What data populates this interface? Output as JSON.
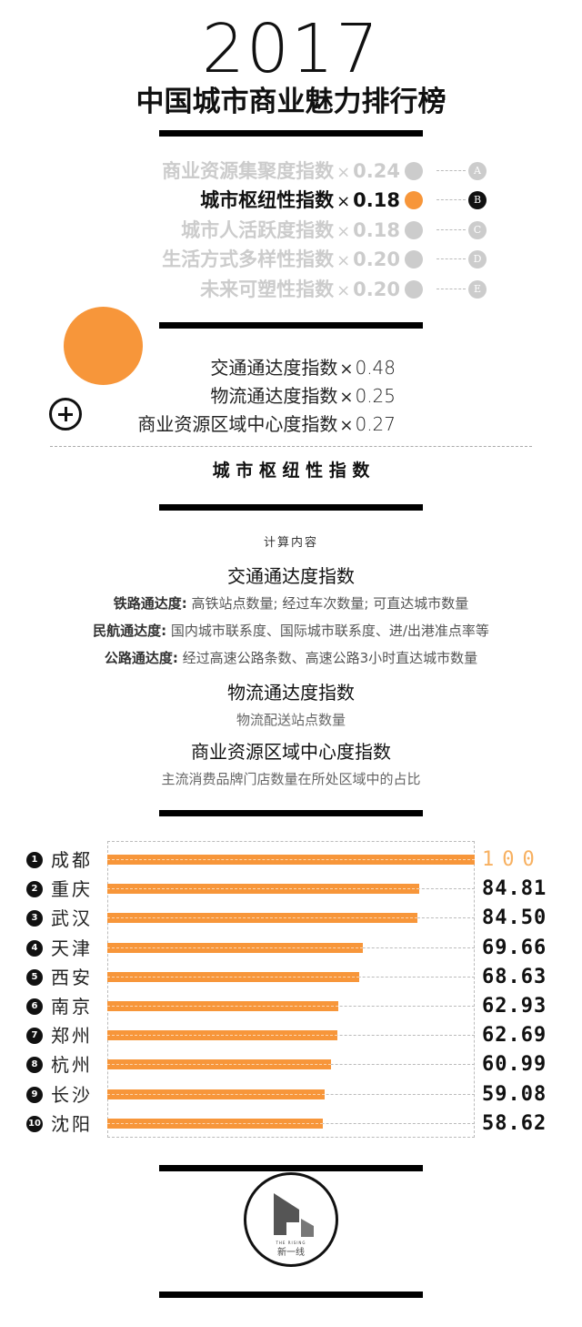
{
  "header": {
    "year": "2017",
    "title": "中国城市商业魅力排行榜"
  },
  "weights": [
    {
      "name": "商业资源集聚度指数",
      "times": "×",
      "weight": "0.24",
      "letter": "A",
      "active": false
    },
    {
      "name": "城市枢纽性指数",
      "times": "×",
      "weight": "0.18",
      "letter": "B",
      "active": true
    },
    {
      "name": "城市人活跃度指数",
      "times": "×",
      "weight": "0.18",
      "letter": "C",
      "active": false
    },
    {
      "name": "生活方式多样性指数",
      "times": "×",
      "weight": "0.20",
      "letter": "D",
      "active": false
    },
    {
      "name": "未来可塑性指数",
      "times": "×",
      "weight": "0.20",
      "letter": "E",
      "active": false
    }
  ],
  "sub_indices": [
    {
      "name": "交通通达度指数",
      "times": "×",
      "weight": "0.48"
    },
    {
      "name": "物流通达度指数",
      "times": "×",
      "weight": "0.25"
    },
    {
      "name": "商业资源区域中心度指数",
      "times": "×",
      "weight": "0.27"
    }
  ],
  "section_title": "城 市 枢 纽 性 指 数",
  "calc": {
    "heading": "计算内容",
    "blocks": [
      {
        "title": "交通通达度指数",
        "lines": [
          {
            "label": "铁路通达度:",
            "text": " 高铁站点数量; 经过车次数量; 可直达城市数量"
          },
          {
            "label": "民航通达度:",
            "text": " 国内城市联系度、国际城市联系度、进/出港准点率等"
          },
          {
            "label": "公路通达度:",
            "text": " 经过高速公路条数、高速公路3小时直达城市数量"
          }
        ]
      },
      {
        "title": "物流通达度指数",
        "desc": "物流配送站点数量"
      },
      {
        "title": "商业资源区域中心度指数",
        "desc": "主流消费品牌门店数量在所处区域中的占比"
      }
    ]
  },
  "colors": {
    "accent": "#f7963a",
    "inactive": "#cccccc",
    "ink": "#111111"
  },
  "chart_data": {
    "type": "bar",
    "orientation": "horizontal",
    "categories": [
      "成都",
      "重庆",
      "武汉",
      "天津",
      "西安",
      "南京",
      "郑州",
      "杭州",
      "长沙",
      "沈阳"
    ],
    "ranks": [
      "1",
      "2",
      "3",
      "4",
      "5",
      "6",
      "7",
      "8",
      "9",
      "10"
    ],
    "values": [
      100,
      84.81,
      84.5,
      69.66,
      68.63,
      62.93,
      62.69,
      60.99,
      59.08,
      58.62
    ],
    "labels": [
      "100",
      "84.81",
      "84.50",
      "69.66",
      "68.63",
      "62.93",
      "62.69",
      "60.99",
      "59.08",
      "58.62"
    ],
    "xlim": [
      0,
      100
    ],
    "bar_color": "#f7963a"
  },
  "logo": {
    "brand_en": "THE RISING",
    "brand_cn": "新一线"
  }
}
